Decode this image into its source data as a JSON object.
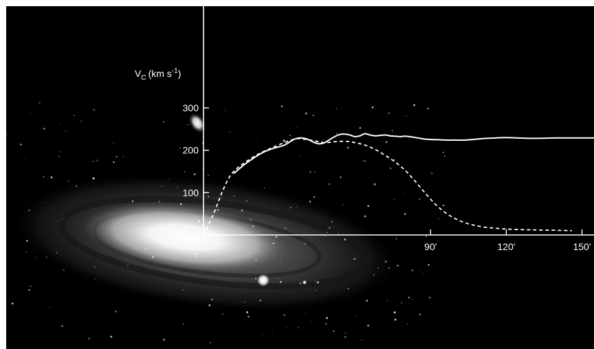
{
  "chart_data": {
    "type": "line",
    "ylabel": {
      "symbol": "V",
      "subscript": "C",
      "unit_prefix": "(km s",
      "unit_exp": "-1",
      "unit_suffix": ")"
    },
    "xlabel": "",
    "title": "",
    "xlim": [
      0,
      160
    ],
    "ylim": [
      0,
      300
    ],
    "x_ticks": [
      {
        "value": 90,
        "label": "90'"
      },
      {
        "value": 120,
        "label": "120'"
      },
      {
        "value": 150,
        "label": "150'"
      }
    ],
    "y_ticks": [
      {
        "value": 100,
        "label": "100"
      },
      {
        "value": 200,
        "label": "200"
      },
      {
        "value": 300,
        "label": "300"
      }
    ],
    "grid": false,
    "legend": "none",
    "series": [
      {
        "style": "solid",
        "color": "#ffffff",
        "x": [
          12,
          16,
          20,
          24,
          28,
          32,
          36,
          38,
          40,
          42,
          44,
          46,
          48,
          50,
          52,
          54,
          56,
          58,
          60,
          62,
          64,
          66,
          68,
          70,
          72,
          74,
          76,
          78,
          80,
          84,
          88,
          92,
          96,
          100,
          104,
          108,
          112,
          116,
          120,
          130,
          140,
          150,
          160
        ],
        "y": [
          145,
          165,
          182,
          196,
          205,
          212,
          226,
          229,
          228,
          224,
          218,
          215,
          218,
          225,
          232,
          237,
          238,
          236,
          232,
          234,
          239,
          236,
          234,
          235,
          236,
          234,
          233,
          232,
          233,
          230,
          226,
          225,
          224,
          224,
          224,
          226,
          228,
          229,
          230,
          228,
          229,
          229,
          229
        ]
      },
      {
        "style": "dashed",
        "color": "#ffffff",
        "x": [
          0,
          4,
          8,
          12,
          20,
          28,
          36,
          40,
          44,
          48,
          52,
          56,
          60,
          64,
          68,
          72,
          76,
          80,
          84,
          88,
          92,
          96,
          100,
          104,
          108,
          112,
          120,
          130,
          140,
          146
        ],
        "y": [
          0,
          50,
          110,
          150,
          185,
          208,
          226,
          226,
          222,
          218,
          220,
          221,
          218,
          212,
          202,
          188,
          172,
          152,
          126,
          98,
          72,
          52,
          38,
          28,
          22,
          18,
          14,
          12,
          11,
          10
        ]
      }
    ]
  }
}
